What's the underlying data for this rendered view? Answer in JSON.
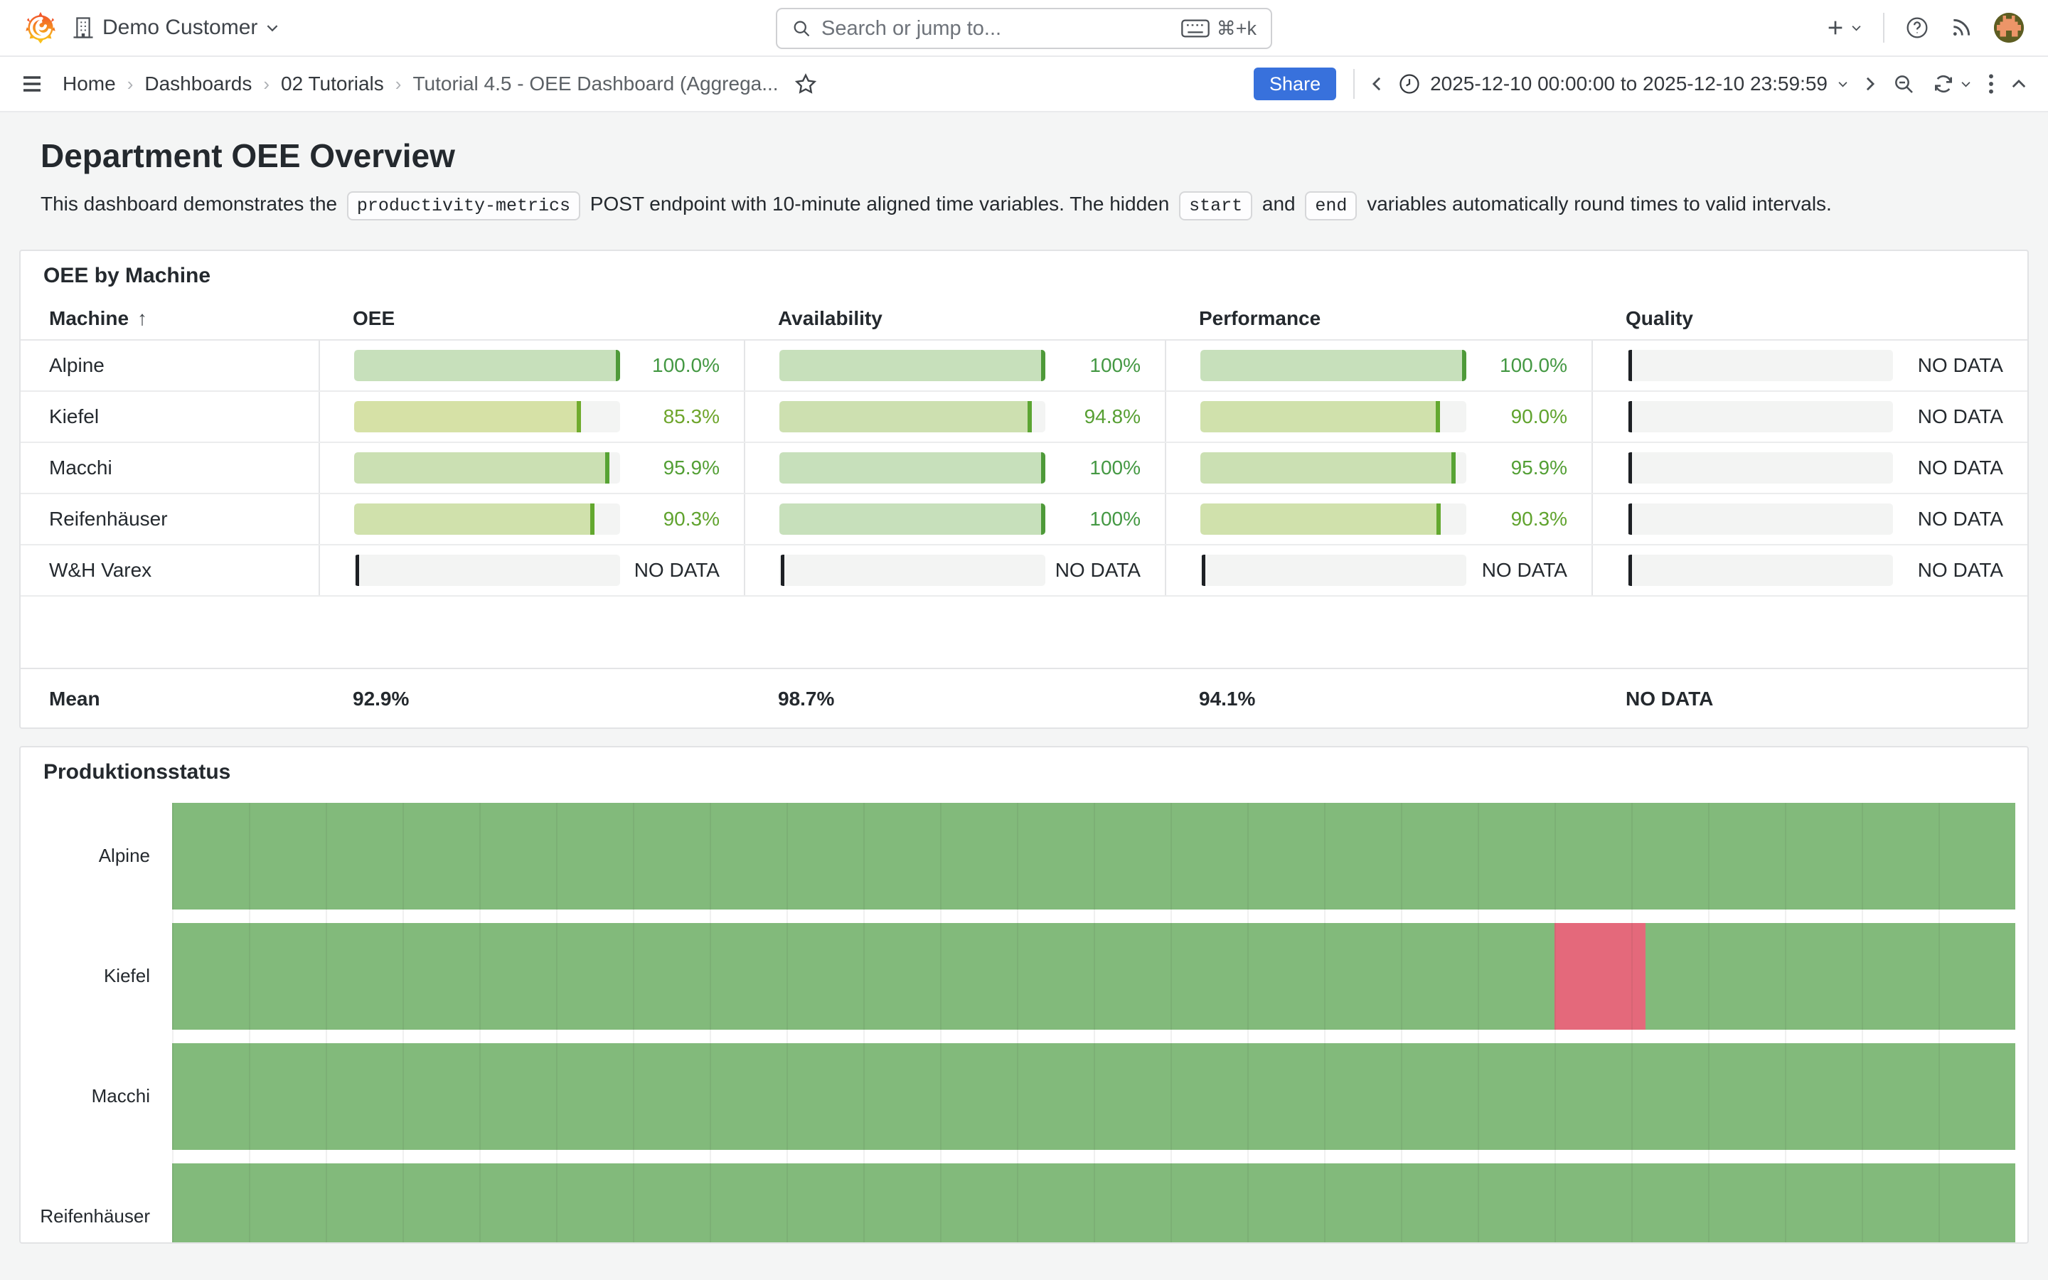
{
  "topnav": {
    "org": "Demo Customer",
    "search_placeholder": "Search or jump to...",
    "search_shortcut": "⌘+k"
  },
  "toolbar": {
    "breadcrumbs": [
      "Home",
      "Dashboards",
      "02 Tutorials",
      "Tutorial 4.5 - OEE Dashboard (Aggrega..."
    ],
    "separator": "›",
    "share_label": "Share",
    "time_range": "2025-12-10 00:00:00 to 2025-12-10 23:59:59"
  },
  "content": {
    "title": "Department OEE Overview",
    "description": [
      "This dashboard demonstrates the ",
      "productivity-metrics",
      " POST endpoint with 10-minute aligned time variables. The hidden ",
      "start",
      " and ",
      "end",
      " variables automatically round times to valid intervals."
    ]
  },
  "oee_panel": {
    "title": "OEE by Machine",
    "columns": [
      "Machine",
      "OEE",
      "Availability",
      "Performance",
      "Quality"
    ],
    "sort_arrow": "↑",
    "no_data_label": "NO DATA",
    "tones": {
      "g100": {
        "text": "#449843",
        "fill": "#c7e0bb",
        "cap": "#4e9a39"
      },
      "g96": {
        "text": "#539f35",
        "fill": "#cbe0b3",
        "cap": "#57a334"
      },
      "g95": {
        "text": "#579f33",
        "fill": "#cde0b0",
        "cap": "#5ca533"
      },
      "g90": {
        "text": "#60a32e",
        "fill": "#d0e1ac",
        "cap": "#63a82f"
      },
      "g85": {
        "text": "#6ea52b",
        "fill": "#d6e1a6",
        "cap": "#70ab2d"
      }
    },
    "rows": [
      {
        "machine": "Alpine",
        "cells": [
          {
            "text": "100.0%",
            "pct": 100,
            "tone": "g100"
          },
          {
            "text": "100%",
            "pct": 100,
            "tone": "g100"
          },
          {
            "text": "100.0%",
            "pct": 100,
            "tone": "g100"
          },
          null
        ]
      },
      {
        "machine": "Kiefel",
        "cells": [
          {
            "text": "85.3%",
            "pct": 85.3,
            "tone": "g85"
          },
          {
            "text": "94.8%",
            "pct": 94.8,
            "tone": "g95"
          },
          {
            "text": "90.0%",
            "pct": 90,
            "tone": "g90"
          },
          null
        ]
      },
      {
        "machine": "Macchi",
        "cells": [
          {
            "text": "95.9%",
            "pct": 95.9,
            "tone": "g96"
          },
          {
            "text": "100%",
            "pct": 100,
            "tone": "g100"
          },
          {
            "text": "95.9%",
            "pct": 95.9,
            "tone": "g96"
          },
          null
        ]
      },
      {
        "machine": "Reifenhäuser",
        "cells": [
          {
            "text": "90.3%",
            "pct": 90.3,
            "tone": "g90"
          },
          {
            "text": "100%",
            "pct": 100,
            "tone": "g100"
          },
          {
            "text": "90.3%",
            "pct": 90.3,
            "tone": "g90"
          },
          null
        ]
      },
      {
        "machine": "W&H Varex",
        "cells": [
          null,
          null,
          null,
          null
        ]
      }
    ],
    "mean": {
      "label": "Mean",
      "values": [
        "92.9%",
        "98.7%",
        "94.1%",
        "NO DATA"
      ]
    }
  },
  "status_panel": {
    "title": "Produktionsstatus",
    "colors": {
      "running": "#82ba7b",
      "stopped": "#e4697b"
    },
    "hour_divisions": 24,
    "rows": [
      {
        "label": "Alpine",
        "segments": [
          {
            "state": "running",
            "from": 0,
            "to": 1
          }
        ]
      },
      {
        "label": "Kiefel",
        "segments": [
          {
            "state": "running",
            "from": 0,
            "to": 0.75
          },
          {
            "state": "stopped",
            "from": 0.75,
            "to": 0.7995
          },
          {
            "state": "running",
            "from": 0.7995,
            "to": 1
          }
        ]
      },
      {
        "label": "Macchi",
        "segments": [
          {
            "state": "running",
            "from": 0,
            "to": 1
          }
        ]
      },
      {
        "label": "Reifenhäuser",
        "segments": [
          {
            "state": "running",
            "from": 0,
            "to": 1
          }
        ]
      }
    ]
  }
}
